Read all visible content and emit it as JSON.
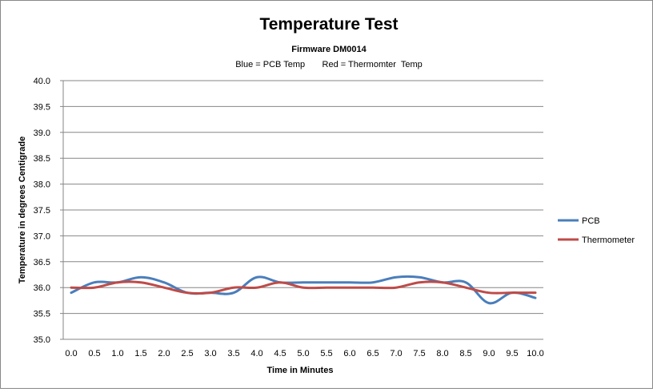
{
  "chart_data": {
    "type": "line",
    "title": "Temperature Test",
    "subtitle_line1": "Firmware DM0014",
    "subtitle_line2": "Blue = PCB Temp       Red = Thermomter  Temp",
    "xlabel": "Time in Minutes",
    "ylabel": "Temperature in degrees Centigrade",
    "x_tick_labels": [
      "0.0",
      "0.5",
      "1.0",
      "1.5",
      "2.0",
      "2.5",
      "3.0",
      "3.5",
      "4.0",
      "4.5",
      "5.0",
      "5.5",
      "6.0",
      "6.5",
      "7.0",
      "7.5",
      "8.0",
      "8.5",
      "9.0",
      "9.5",
      "10.0"
    ],
    "y_tick_labels": [
      "35.0",
      "35.5",
      "36.0",
      "36.5",
      "37.0",
      "37.5",
      "38.0",
      "38.5",
      "39.0",
      "39.5",
      "40.0"
    ],
    "x": [
      0.0,
      0.5,
      1.0,
      1.5,
      2.0,
      2.5,
      3.0,
      3.5,
      4.0,
      4.5,
      5.0,
      5.5,
      6.0,
      6.5,
      7.0,
      7.5,
      8.0,
      8.5,
      9.0,
      9.5,
      10.0
    ],
    "ylim": [
      35.0,
      40.0
    ],
    "grid": true,
    "smooth": true,
    "legend_position": "right",
    "series": [
      {
        "name": "PCB",
        "color": "#4a7ebb",
        "values": [
          35.9,
          36.1,
          36.1,
          36.2,
          36.1,
          35.9,
          35.9,
          35.9,
          36.2,
          36.1,
          36.1,
          36.1,
          36.1,
          36.1,
          36.2,
          36.2,
          36.1,
          36.1,
          35.7,
          35.9,
          35.8
        ]
      },
      {
        "name": "Thermometer",
        "color": "#be4b48",
        "values": [
          36.0,
          36.0,
          36.1,
          36.1,
          36.0,
          35.9,
          35.9,
          36.0,
          36.0,
          36.1,
          36.0,
          36.0,
          36.0,
          36.0,
          36.0,
          36.1,
          36.1,
          36.0,
          35.9,
          35.9,
          35.9
        ]
      }
    ]
  }
}
